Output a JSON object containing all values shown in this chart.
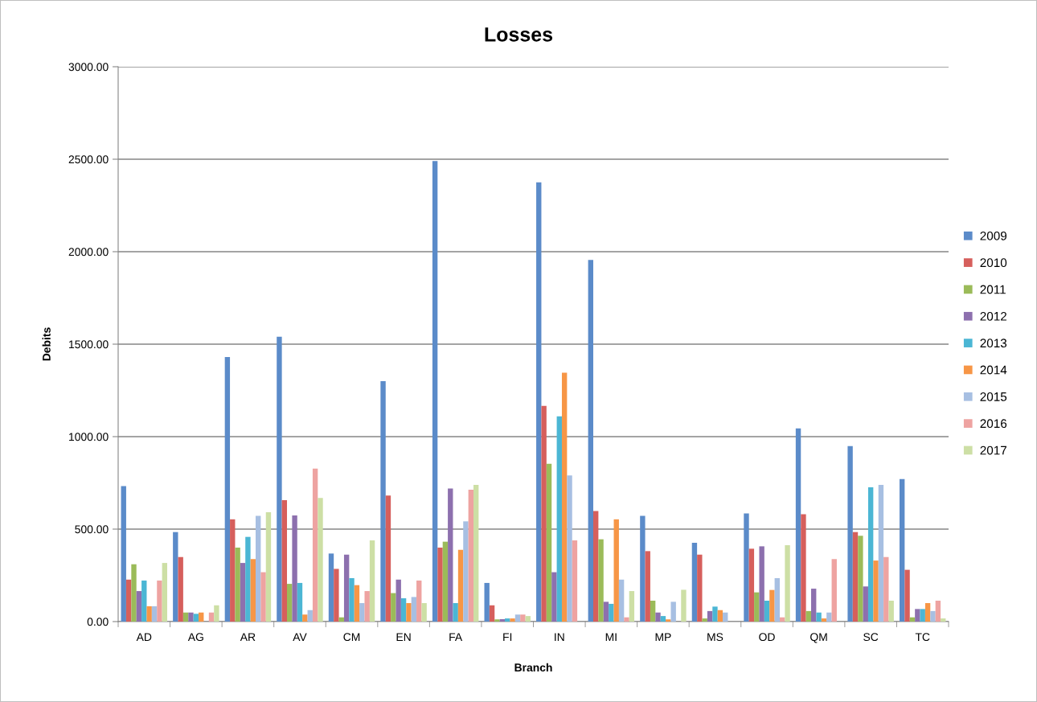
{
  "chart_data": {
    "type": "bar",
    "title": "Losses",
    "xlabel": "Branch",
    "ylabel": "Debits",
    "categories": [
      "AD",
      "AG",
      "AR",
      "AV",
      "CM",
      "EN",
      "FA",
      "FI",
      "IN",
      "MI",
      "MP",
      "MS",
      "OD",
      "QM",
      "SC",
      "TC"
    ],
    "series": [
      {
        "name": "2009",
        "color": "#5b8bc9",
        "values": [
          733,
          484,
          1430,
          1540,
          368,
          1300,
          2490,
          209,
          2375,
          1955,
          572,
          426,
          585,
          1045,
          949,
          771
        ]
      },
      {
        "name": "2010",
        "color": "#d65f5c",
        "values": [
          227,
          349,
          553,
          656,
          285,
          681,
          400,
          88,
          1166,
          598,
          381,
          362,
          394,
          580,
          484,
          280
        ]
      },
      {
        "name": "2011",
        "color": "#9bbb59",
        "values": [
          310,
          49,
          400,
          204,
          23,
          154,
          432,
          12,
          853,
          445,
          113,
          17,
          158,
          57,
          464,
          23
        ]
      },
      {
        "name": "2012",
        "color": "#8d70ae",
        "values": [
          165,
          49,
          317,
          574,
          362,
          227,
          720,
          13,
          267,
          107,
          49,
          57,
          407,
          178,
          190,
          68
        ]
      },
      {
        "name": "2013",
        "color": "#4bb6d4",
        "values": [
          222,
          42,
          458,
          209,
          235,
          126,
          100,
          17,
          1110,
          96,
          30,
          81,
          113,
          49,
          726,
          68
        ]
      },
      {
        "name": "2014",
        "color": "#f79646",
        "values": [
          83,
          49,
          338,
          38,
          197,
          100,
          388,
          17,
          1346,
          553,
          12,
          62,
          171,
          17,
          330,
          100
        ]
      },
      {
        "name": "2015",
        "color": "#a7bfe2",
        "values": [
          83,
          null,
          572,
          62,
          100,
          133,
          542,
          38,
          790,
          227,
          107,
          49,
          235,
          49,
          739,
          57
        ]
      },
      {
        "name": "2016",
        "color": "#eea3a1",
        "values": [
          222,
          49,
          267,
          827,
          165,
          222,
          713,
          38,
          439,
          23,
          null,
          null,
          23,
          338,
          349,
          113
        ]
      },
      {
        "name": "2017",
        "color": "#cddfa5",
        "values": [
          317,
          88,
          591,
          668,
          439,
          100,
          739,
          30,
          null,
          165,
          172,
          null,
          413,
          null,
          113,
          17
        ]
      }
    ],
    "ylim": [
      0,
      3000
    ],
    "yticks": [
      {
        "value": 0,
        "label": "0.00"
      },
      {
        "value": 500,
        "label": "500.00"
      },
      {
        "value": 1000,
        "label": "1000.00"
      },
      {
        "value": 1500,
        "label": "1500.00"
      },
      {
        "value": 2000,
        "label": "2000.00"
      },
      {
        "value": 2500,
        "label": "2500.00"
      },
      {
        "value": 3000,
        "label": "3000.00"
      }
    ],
    "grid": "y",
    "legend": "right"
  }
}
